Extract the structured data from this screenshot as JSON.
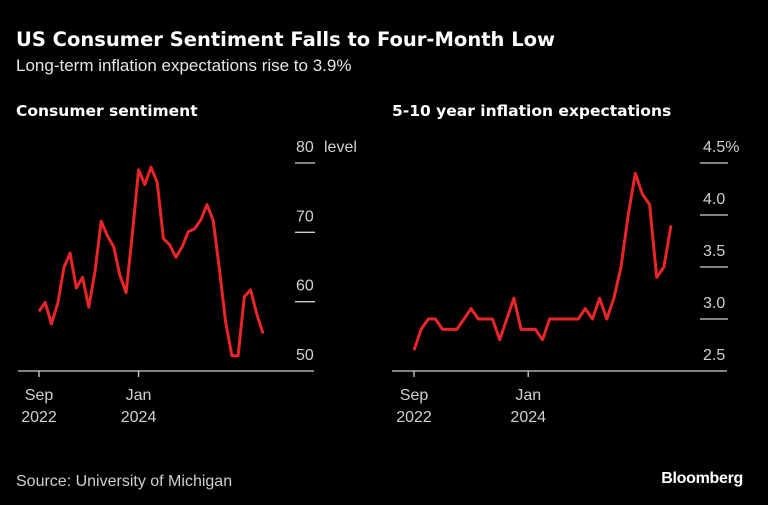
{
  "title": "US Consumer Sentiment Falls to Four-Month Low",
  "subtitle": "Long-term inflation expectations rise to 3.9%",
  "source": "Source: University of Michigan",
  "logo": "Bloomberg",
  "colors": {
    "background": "#000000",
    "line": "#e8262a",
    "axis": "#cfcfcf",
    "text": "#ffffff"
  },
  "chart_data": [
    {
      "type": "line",
      "title": "Consumer sentiment",
      "ylabel": "level",
      "ylim": [
        50,
        80
      ],
      "yticks": [
        "80",
        "70",
        "60",
        "50"
      ],
      "ytick_values": [
        80,
        70,
        60,
        50
      ],
      "y_unit_label": "level",
      "x_start": "2022-09",
      "x_end": "2025-09",
      "frequency": "monthly",
      "xticks": [
        {
          "line1": "Sep",
          "line2": "2022",
          "index": 0
        },
        {
          "line1": "Jan",
          "line2": "2024",
          "index": 16
        }
      ],
      "grid": false,
      "values": [
        58.6,
        59.9,
        56.8,
        59.7,
        64.9,
        67.0,
        62.0,
        63.5,
        59.2,
        64.4,
        71.6,
        69.5,
        67.9,
        63.8,
        61.3,
        69.7,
        79.0,
        76.9,
        79.4,
        77.2,
        69.1,
        68.2,
        66.4,
        67.9,
        70.1,
        70.5,
        71.8,
        74.0,
        71.7,
        64.7,
        57.0,
        52.2,
        52.2,
        60.7,
        61.7,
        58.2,
        55.4
      ]
    },
    {
      "type": "line",
      "title": "5-10 year inflation expectations",
      "ylim": [
        2.5,
        4.5
      ],
      "yticks": [
        "4.5%",
        "4.0",
        "3.5",
        "3.0",
        "2.5"
      ],
      "ytick_values": [
        4.5,
        4.0,
        3.5,
        3.0,
        2.5
      ],
      "x_start": "2022-09",
      "x_end": "2025-09",
      "frequency": "monthly",
      "xticks": [
        {
          "line1": "Sep",
          "line2": "2022",
          "index": 0
        },
        {
          "line1": "Jan",
          "line2": "2024",
          "index": 16
        }
      ],
      "grid": false,
      "values": [
        2.7,
        2.9,
        3.0,
        3.0,
        2.9,
        2.9,
        2.9,
        3.0,
        3.1,
        3.0,
        3.0,
        3.0,
        2.8,
        3.0,
        3.2,
        2.9,
        2.9,
        2.9,
        2.8,
        3.0,
        3.0,
        3.0,
        3.0,
        3.0,
        3.1,
        3.0,
        3.2,
        3.0,
        3.2,
        3.5,
        4.0,
        4.4,
        4.2,
        4.1,
        3.4,
        3.5,
        3.9
      ]
    }
  ]
}
